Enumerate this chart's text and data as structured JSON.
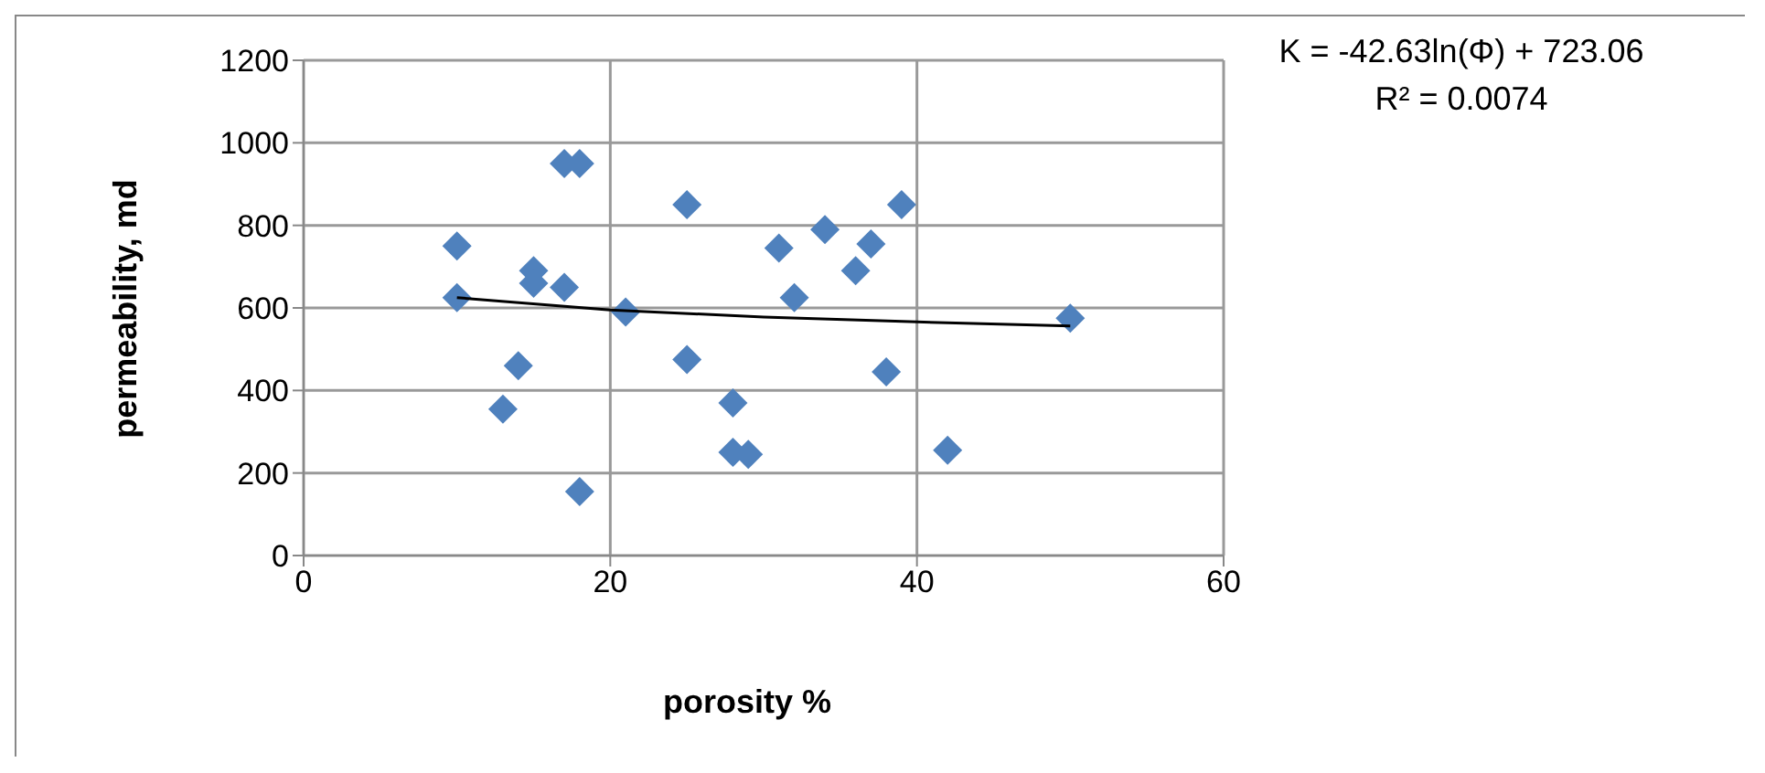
{
  "chart_data": {
    "type": "scatter",
    "xlabel": "porosity %",
    "ylabel": "permeability, md",
    "xlim": [
      0,
      60
    ],
    "xticks": [
      0,
      20,
      40,
      60
    ],
    "ylim": [
      0,
      1200
    ],
    "yticks": [
      0,
      200,
      400,
      600,
      800,
      1000,
      1200
    ],
    "grid": true,
    "marker": "diamond",
    "annotations": [
      "K = -42.63ln(Φ) + 723.06",
      "R² = 0.0074"
    ],
    "series": [
      {
        "color": "#4f81bd",
        "x": [
          10,
          10,
          13,
          14,
          15,
          15,
          17,
          17,
          18,
          18,
          21,
          25,
          25,
          28,
          28,
          29,
          31,
          32,
          34,
          36,
          37,
          38,
          39,
          42,
          50
        ],
        "values": [
          750,
          625,
          355,
          460,
          690,
          660,
          650,
          950,
          950,
          155,
          590,
          850,
          475,
          370,
          250,
          245,
          745,
          625,
          790,
          690,
          755,
          445,
          850,
          255,
          575
        ]
      },
      {
        "type": "line",
        "color": "#000000",
        "marker": "none",
        "x": [
          10,
          20,
          30,
          40,
          50
        ],
        "values": [
          625,
          595,
          578,
          566,
          556
        ]
      }
    ]
  }
}
